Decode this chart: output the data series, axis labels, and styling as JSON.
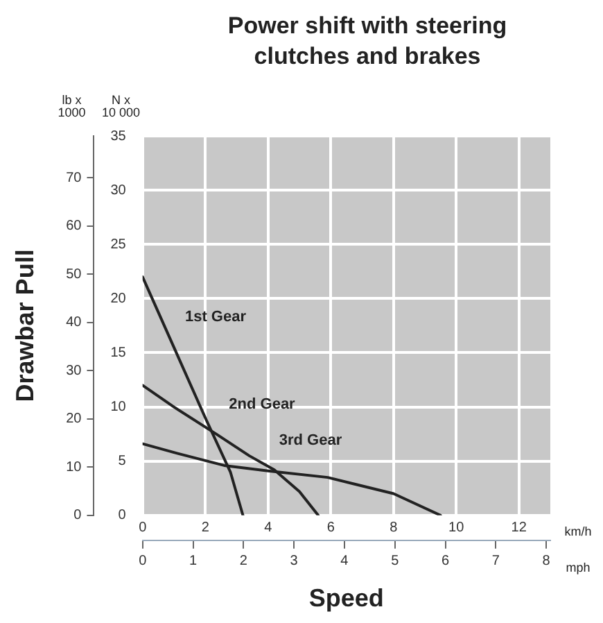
{
  "chart_data": {
    "type": "line",
    "title": "Power shift with steering clutches and brakes",
    "xlabel": "Speed",
    "ylabel": "Drawbar Pull",
    "xlim": [
      0,
      13
    ],
    "xticks": [
      0,
      2,
      4,
      6,
      8,
      10,
      12
    ],
    "x2lim": [
      0,
      8.08
    ],
    "x2ticks": [
      0,
      1,
      2,
      3,
      4,
      5,
      6,
      7,
      8
    ],
    "ylim": [
      0,
      78.7
    ],
    "yticks": [
      0,
      10,
      20,
      30,
      40,
      50,
      60,
      70
    ],
    "y2lim": [
      0,
      35
    ],
    "y2ticks": [
      0,
      5,
      10,
      15,
      20,
      25,
      30,
      35
    ],
    "grid": true,
    "legend": false,
    "marker": "none",
    "line_style": "solid",
    "series": [
      {
        "name": "1st Gear",
        "axis": "y2",
        "color": "#222222",
        "x": [
          0,
          1,
          2,
          2.8,
          3.2
        ],
        "values": [
          22,
          15.5,
          9,
          4,
          0
        ]
      },
      {
        "name": "2nd Gear",
        "axis": "y2",
        "color": "#222222",
        "x": [
          0,
          1,
          2.4,
          3.4,
          4.2,
          5,
          5.6
        ],
        "values": [
          12,
          10,
          7.4,
          5.5,
          4.2,
          2.2,
          0
        ]
      },
      {
        "name": "3rd Gear",
        "axis": "y2",
        "color": "#222222",
        "x": [
          0,
          1,
          2.6,
          4,
          5.9,
          8,
          9.5
        ],
        "values": [
          6.6,
          5.8,
          4.6,
          4.1,
          3.5,
          2,
          0
        ]
      }
    ],
    "annotations": [
      "lb x 1000",
      "N x 10 000",
      "km/h",
      "mph"
    ]
  }
}
